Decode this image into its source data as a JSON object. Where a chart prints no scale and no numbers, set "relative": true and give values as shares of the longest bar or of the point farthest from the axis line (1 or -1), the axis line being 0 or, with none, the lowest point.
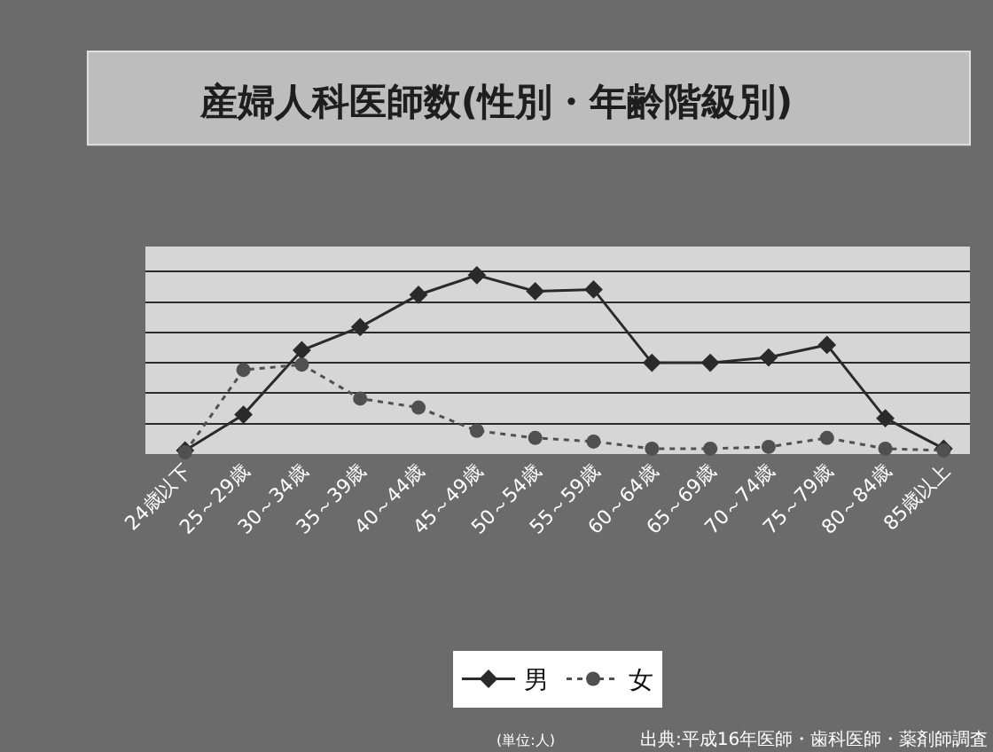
{
  "chart_data": {
    "type": "line",
    "title": "産婦人科医師数(性別・年齢階級別)",
    "relative": true,
    "grid": "y",
    "legend": "bottom",
    "categories": [
      "24歳以下",
      "25～29歳",
      "30～34歳",
      "35～39歳",
      "40～44歳",
      "45～49歳",
      "50～54歳",
      "55～59歳",
      "60～64歳",
      "65～69歳",
      "70～74歳",
      "75～79歳",
      "80～84歳",
      "85歳以上"
    ],
    "series": [
      {
        "name": "男",
        "color": "#2a2a2a",
        "marker": "diamond",
        "line_style": "solid",
        "values": [
          0.02,
          0.22,
          0.58,
          0.71,
          0.89,
          1,
          0.91,
          0.92,
          0.51,
          0.51,
          0.54,
          0.61,
          0.2,
          0.03
        ]
      },
      {
        "name": "女",
        "color": "#505050",
        "marker": "circle",
        "line_style": "dotted",
        "values": [
          0.01,
          0.47,
          0.5,
          0.31,
          0.26,
          0.13,
          0.09,
          0.07,
          0.03,
          0.03,
          0.04,
          0.09,
          0.03,
          0.02
        ]
      }
    ],
    "annotations": [
      "(単位:人)",
      "出典:平成16年医師・歯科医師・薬剤師調査"
    ]
  }
}
